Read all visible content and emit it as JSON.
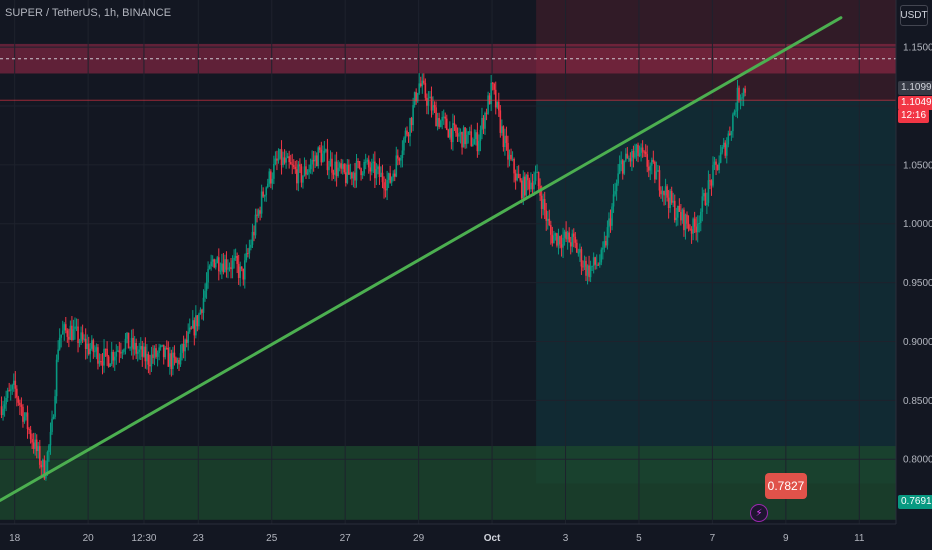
{
  "header": {
    "symbol": "SUPER / TetherUS, 1h, BINANCE",
    "currency": "USDT"
  },
  "price_tags": {
    "last": "1.1099",
    "bid": "1.1049",
    "countdown": "12:16",
    "support": "0.7691"
  },
  "callout": {
    "value": "0.7827"
  },
  "colors": {
    "background": "#131722",
    "up": "#089981",
    "down": "#f23645",
    "trendline": "#4caf50",
    "resistance_zone": "#a12a4a",
    "support_zone": "#1c4a2e",
    "target_box": "#12323a",
    "stop_box": "#4a1f2b",
    "callout": "#e0524a",
    "axis_text": "#b2b5be"
  },
  "chart_data": {
    "type": "candlestick",
    "title": "SUPER / TetherUS, 1h, BINANCE",
    "x_tick_labels": [
      "18",
      "20",
      "12:30",
      "23",
      "25",
      "27",
      "29",
      "Oct",
      "3",
      "5",
      "7",
      "9",
      "11"
    ],
    "x_ticks_day_index": [
      0,
      2,
      3.52,
      5,
      7,
      9,
      11,
      13,
      15,
      17,
      19,
      21,
      23
    ],
    "x_range_day_index": [
      -0.4,
      24
    ],
    "y_tick_labels": [
      "1.1500",
      "1.1000",
      "1.0500",
      "1.0000",
      "0.9500",
      "0.9000",
      "0.8500",
      "0.8000"
    ],
    "y_ticks": [
      1.15,
      1.1,
      1.05,
      1.0,
      0.95,
      0.9,
      0.85,
      0.8
    ],
    "ylim": [
      0.745,
      1.19
    ],
    "price_path": [
      [
        -0.4,
        0.845
      ],
      [
        0,
        0.86
      ],
      [
        0.5,
        0.815
      ],
      [
        0.8,
        0.79
      ],
      [
        1.0,
        0.82
      ],
      [
        1.2,
        0.905
      ],
      [
        1.5,
        0.91
      ],
      [
        2.0,
        0.895
      ],
      [
        2.5,
        0.885
      ],
      [
        3.0,
        0.9
      ],
      [
        3.6,
        0.885
      ],
      [
        4.0,
        0.89
      ],
      [
        4.4,
        0.88
      ],
      [
        5.0,
        0.92
      ],
      [
        5.4,
        0.97
      ],
      [
        6.0,
        0.965
      ],
      [
        6.2,
        0.955
      ],
      [
        6.8,
        1.03
      ],
      [
        7.2,
        1.055
      ],
      [
        7.8,
        1.04
      ],
      [
        8.3,
        1.06
      ],
      [
        9.0,
        1.04
      ],
      [
        9.5,
        1.05
      ],
      [
        10.2,
        1.035
      ],
      [
        10.8,
        1.09
      ],
      [
        11.0,
        1.12
      ],
      [
        11.5,
        1.09
      ],
      [
        12.0,
        1.075
      ],
      [
        12.6,
        1.07
      ],
      [
        13.0,
        1.115
      ],
      [
        13.4,
        1.06
      ],
      [
        13.8,
        1.03
      ],
      [
        14.2,
        1.04
      ],
      [
        14.6,
        0.99
      ],
      [
        15.2,
        0.985
      ],
      [
        15.6,
        0.96
      ],
      [
        16.0,
        0.97
      ],
      [
        16.5,
        1.05
      ],
      [
        17.0,
        1.06
      ],
      [
        17.5,
        1.04
      ],
      [
        18.0,
        1.01
      ],
      [
        18.5,
        0.995
      ],
      [
        19.0,
        1.04
      ],
      [
        19.4,
        1.07
      ],
      [
        19.7,
        1.11
      ],
      [
        19.9,
        1.115
      ]
    ],
    "trendline": {
      "from": [
        -0.4,
        0.765
      ],
      "to": [
        22.5,
        1.175
      ]
    },
    "horizontal_levels": [
      {
        "price": 1.1401,
        "style": "dashed"
      },
      {
        "price": 1.1049,
        "style": "solid"
      }
    ],
    "zones": [
      {
        "name": "resistance",
        "price_range": [
          1.1276,
          1.1527
        ],
        "day_range": [
          -0.4,
          24
        ]
      },
      {
        "name": "support",
        "price_range": [
          0.7486,
          0.8112
        ],
        "day_range": [
          -0.4,
          24
        ]
      },
      {
        "name": "stop",
        "price_range": [
          1.1049,
          1.1906
        ],
        "day_range": [
          14.2,
          24
        ]
      },
      {
        "name": "target",
        "price_range": [
          0.7795,
          1.1049
        ],
        "day_range": [
          14.2,
          24
        ]
      }
    ]
  }
}
